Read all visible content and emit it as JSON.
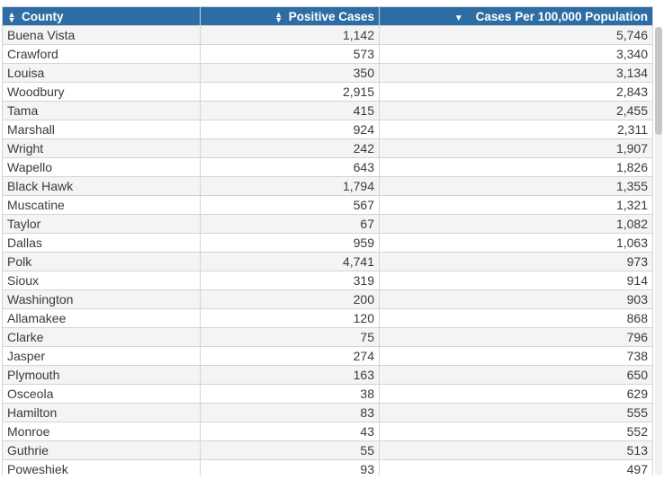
{
  "colors": {
    "header_bg": "#2e6da4",
    "header_text": "#ffffff",
    "row_odd": "#f4f4f4",
    "row_even": "#ffffff"
  },
  "table": {
    "columns": [
      {
        "label": "County",
        "sort": "unsorted",
        "sort_icon": "sort-updown-icon"
      },
      {
        "label": "Positive Cases",
        "sort": "unsorted",
        "sort_icon": "sort-updown-icon"
      },
      {
        "label": "Cases Per 100,000 Population",
        "sort": "descending",
        "sort_icon": "sort-desc-icon"
      }
    ],
    "rows": [
      [
        "Buena Vista",
        "1,142",
        "5,746"
      ],
      [
        "Crawford",
        "573",
        "3,340"
      ],
      [
        "Louisa",
        "350",
        "3,134"
      ],
      [
        "Woodbury",
        "2,915",
        "2,843"
      ],
      [
        "Tama",
        "415",
        "2,455"
      ],
      [
        "Marshall",
        "924",
        "2,311"
      ],
      [
        "Wright",
        "242",
        "1,907"
      ],
      [
        "Wapello",
        "643",
        "1,826"
      ],
      [
        "Black Hawk",
        "1,794",
        "1,355"
      ],
      [
        "Muscatine",
        "567",
        "1,321"
      ],
      [
        "Taylor",
        "67",
        "1,082"
      ],
      [
        "Dallas",
        "959",
        "1,063"
      ],
      [
        "Polk",
        "4,741",
        "973"
      ],
      [
        "Sioux",
        "319",
        "914"
      ],
      [
        "Washington",
        "200",
        "903"
      ],
      [
        "Allamakee",
        "120",
        "868"
      ],
      [
        "Clarke",
        "75",
        "796"
      ],
      [
        "Jasper",
        "274",
        "738"
      ],
      [
        "Plymouth",
        "163",
        "650"
      ],
      [
        "Osceola",
        "38",
        "629"
      ],
      [
        "Hamilton",
        "83",
        "555"
      ],
      [
        "Monroe",
        "43",
        "552"
      ],
      [
        "Guthrie",
        "55",
        "513"
      ],
      [
        "Poweshiek",
        "93",
        "497"
      ],
      [
        "",
        "",
        ""
      ]
    ]
  }
}
